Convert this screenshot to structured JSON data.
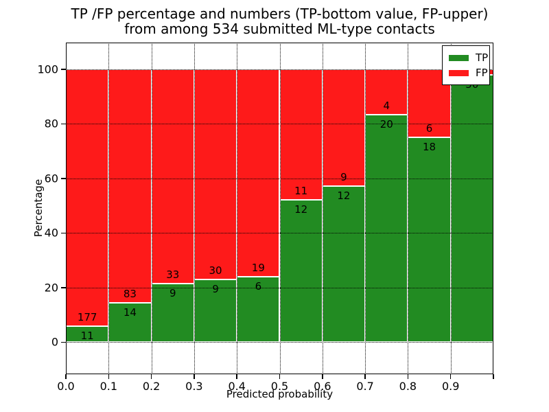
{
  "title": {
    "line1": "TP /FP percentage and numbers (TP-bottom value, FP-upper)",
    "line2": "from among 534 submitted ML-type contacts"
  },
  "axes": {
    "xlabel": "Predicted probability",
    "ylabel": "Percentage"
  },
  "legend": {
    "entries": [
      {
        "label": "TP",
        "color": "#228b22"
      },
      {
        "label": "FP",
        "color": "#fe1a1a"
      }
    ]
  },
  "chart_data": {
    "type": "bar",
    "stacked": true,
    "title": "TP /FP percentage and numbers (TP-bottom value, FP-upper)\nfrom among 534 submitted ML-type contacts",
    "xlabel": "Predicted probability",
    "ylabel": "Percentage",
    "total_contacts": 534,
    "bin_edges": [
      0.0,
      0.1,
      0.2,
      0.3,
      0.4,
      0.5,
      0.6,
      0.7,
      0.8,
      0.9,
      1.0
    ],
    "series": [
      {
        "name": "TP",
        "color": "#228b22",
        "counts": [
          11,
          14,
          9,
          9,
          6,
          12,
          12,
          20,
          18,
          50
        ],
        "percent": [
          5.85,
          14.43,
          21.43,
          23.08,
          24.0,
          52.17,
          57.14,
          83.33,
          75.0,
          98.04
        ]
      },
      {
        "name": "FP",
        "color": "#fe1a1a",
        "counts": [
          177,
          83,
          33,
          30,
          19,
          11,
          9,
          4,
          6,
          1
        ],
        "percent": [
          94.15,
          85.57,
          78.57,
          76.92,
          76.0,
          47.83,
          42.86,
          16.67,
          25.0,
          1.96
        ]
      }
    ],
    "bar_count_labels": {
      "tp": [
        "11",
        "14",
        "9",
        "9",
        "6",
        "12",
        "12",
        "20",
        "18",
        "50"
      ],
      "fp": [
        "177",
        "83",
        "33",
        "30",
        "19",
        "11",
        "9",
        "4",
        "6",
        ""
      ]
    },
    "xticks": {
      "values": [
        0.0,
        0.1,
        0.2,
        0.3,
        0.4,
        0.5,
        0.6,
        0.7,
        0.8,
        0.9
      ],
      "labels": [
        "0.0",
        "0.1",
        "0.2",
        "0.3",
        "0.4",
        "0.5",
        "0.6",
        "0.7",
        "0.8",
        "0.9"
      ]
    },
    "xtick_marks": [
      0.0,
      0.1,
      0.2,
      0.3,
      0.4,
      0.5,
      0.6,
      0.7,
      0.8,
      0.9,
      1.0
    ],
    "yticks": {
      "values": [
        0,
        20,
        40,
        60,
        80,
        100
      ],
      "labels": [
        "0",
        "20",
        "40",
        "60",
        "80",
        "100"
      ]
    },
    "xlim": [
      0.0,
      1.0
    ],
    "ylim": [
      -11.7,
      109.8
    ],
    "grid": {
      "style": "dotted",
      "color": "#000000"
    },
    "legend_position": "upper right"
  }
}
